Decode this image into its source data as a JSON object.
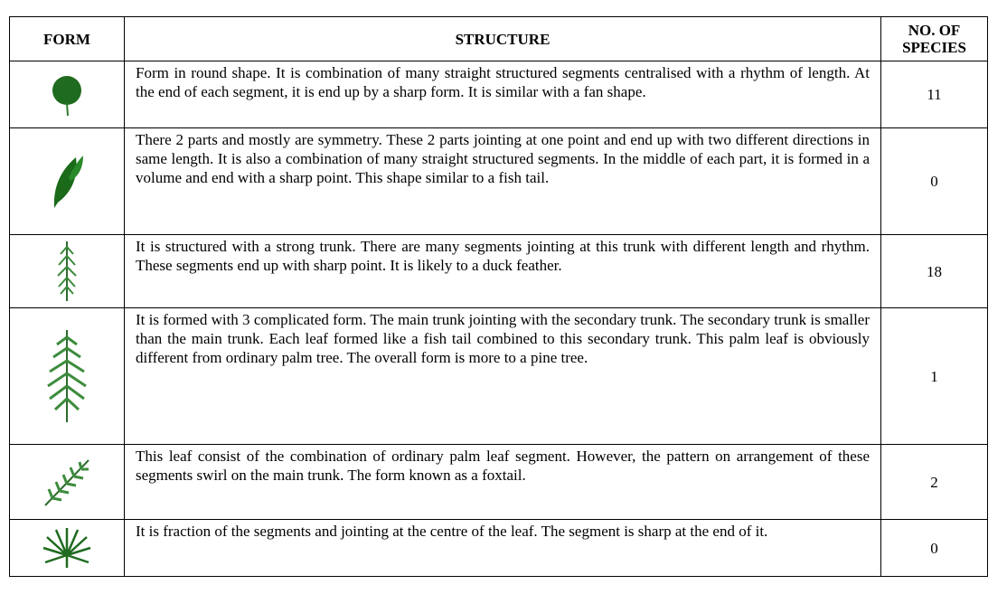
{
  "table": {
    "header": [
      "FORM",
      "STRUCTURE",
      "NO. OF SPECIES"
    ],
    "rows": [
      {
        "structure": "Form in round shape. It is combination of many straight structured segments centralised with a rhythm of length. At the end of each segment, it is end up by a sharp form. It is similar with a fan shape.",
        "species": 11
      },
      {
        "structure": "There 2 parts and mostly are symmetry. These 2 parts jointing at one point and end up with two different directions in same length. It is also a combination of many straight structured segments. In the middle of each part, it is formed in a volume and end with a sharp point. This shape similar to a fish tail.",
        "species": 0
      },
      {
        "structure": "It is structured with a strong trunk. There are many segments jointing at this trunk with different length and rhythm. These segments end  up with sharp point. It is likely to a duck feather.",
        "species": 18
      },
      {
        "structure": "It is formed with 3 complicated form. The main trunk jointing with the secondary trunk. The secondary trunk is smaller than the main trunk. Each leaf formed like a fish tail combined to this secondary trunk. This palm leaf is obviously different from ordinary palm tree. The overall form is more to a pine tree.",
        "species": 1
      },
      {
        "structure": "This leaf consist of the combination of ordinary palm leaf segment. However, the pattern on arrangement of these segments swirl on the main trunk. The form known as a foxtail.",
        "species": 2
      },
      {
        "structure": "It is fraction of the segments and jointing at the centre of the leaf. The segment is sharp at the end of it.",
        "species": 0
      }
    ]
  }
}
